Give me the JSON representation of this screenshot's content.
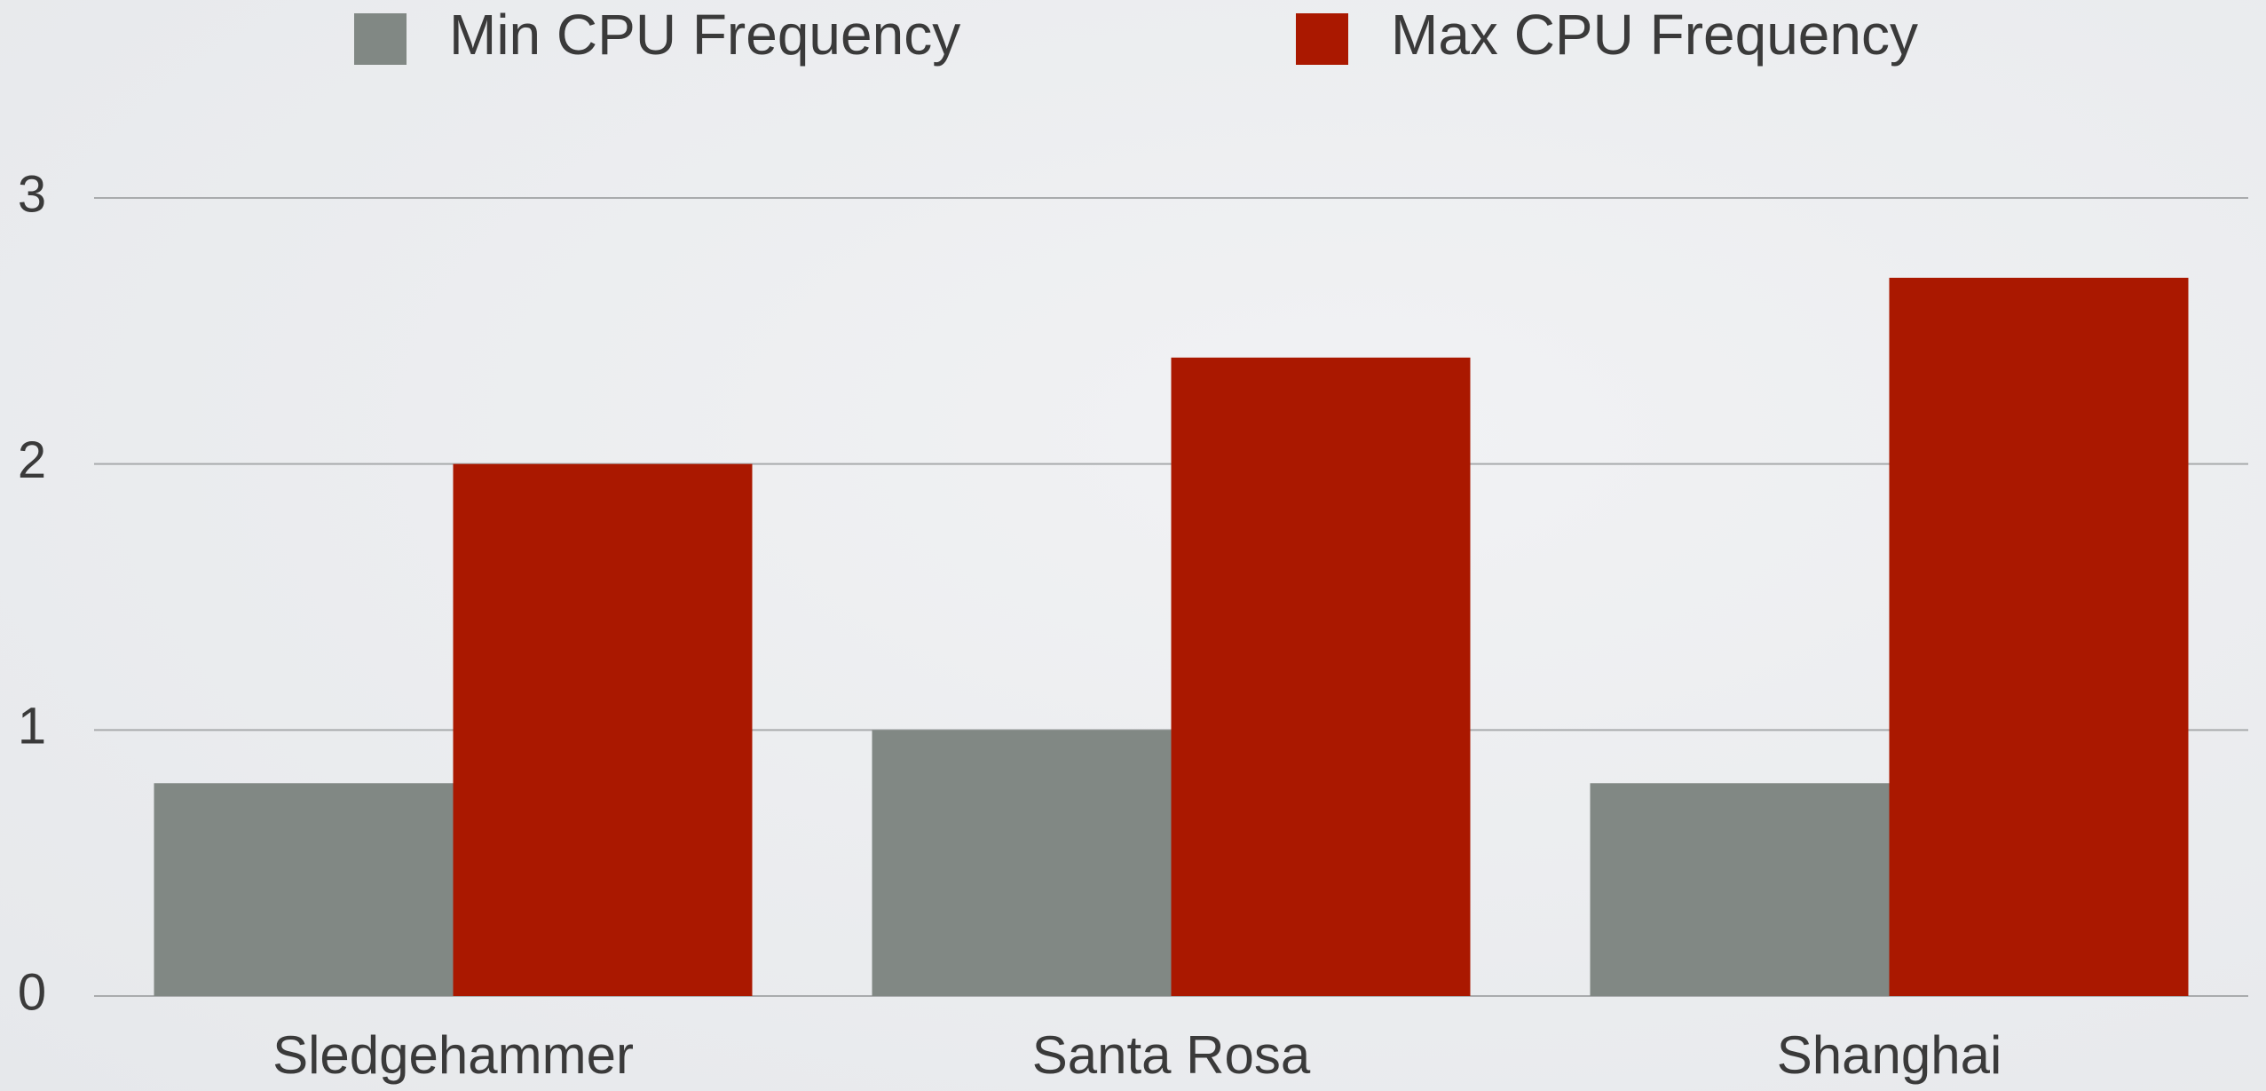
{
  "chart_data": {
    "type": "bar",
    "categories": [
      "Sledgehammer",
      "Santa Rosa",
      "Shanghai"
    ],
    "series": [
      {
        "name": "Min CPU Frequency",
        "color": "#818884",
        "values": [
          0.8,
          1.0,
          0.8
        ]
      },
      {
        "name": "Max CPU Frequency",
        "color": "#aa1800",
        "values": [
          2.0,
          2.4,
          2.7
        ]
      }
    ],
    "ylim": [
      0,
      3
    ],
    "yticks": [
      0,
      1,
      2,
      3
    ],
    "grid": true,
    "legend": "top"
  }
}
